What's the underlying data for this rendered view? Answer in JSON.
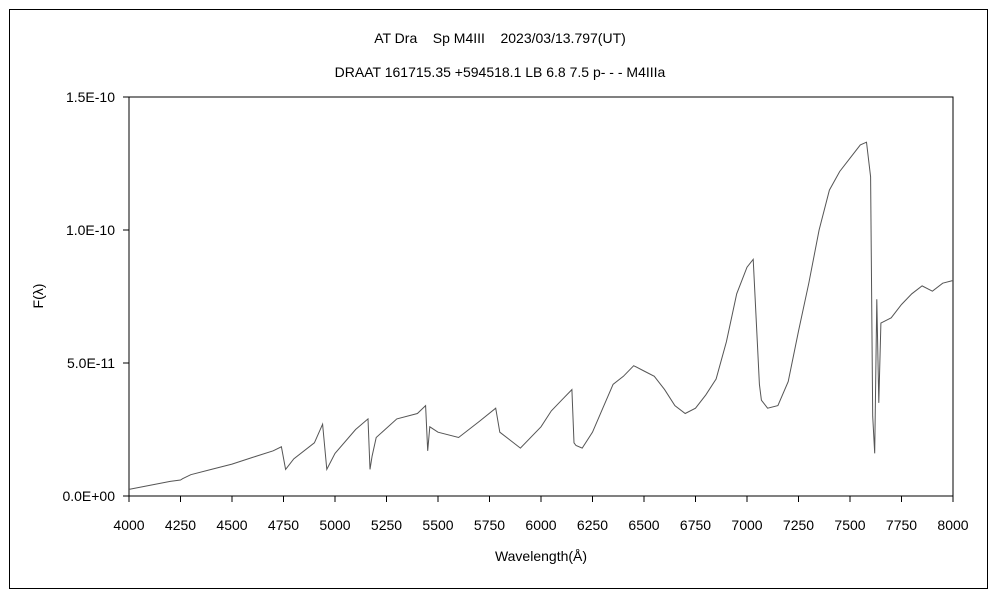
{
  "chart_data": {
    "type": "line",
    "title": "AT Dra    Sp M4III    2023/03/13.797(UT)",
    "subtitle": "DRAAT 161715.35 +594518.1 LB 6.8 7.5 p- - - M4IIIa",
    "xlabel": "Wavelength(Å)",
    "ylabel": "F(λ)",
    "xlim": [
      4000,
      8000
    ],
    "ylim": [
      0,
      1.5e-10
    ],
    "x_ticks": [
      4000,
      4250,
      4500,
      4750,
      5000,
      5250,
      5500,
      5750,
      6000,
      6250,
      6500,
      6750,
      7000,
      7250,
      7500,
      7750,
      8000
    ],
    "x_tick_labels": [
      "4000",
      "4250",
      "4500",
      "4750",
      "5000",
      "5250",
      "5500",
      "5750",
      "6000",
      "6250",
      "6500",
      "6750",
      "7000",
      "7250",
      "7500",
      "7750",
      "8000"
    ],
    "y_ticks": [
      0,
      5e-11,
      1e-10,
      1.5e-10
    ],
    "y_tick_labels": [
      "0.0E+00",
      "5.0E-11",
      "1.0E-10",
      "1.5E-10"
    ],
    "grid": false,
    "line_color": "#555555",
    "series": [
      {
        "x": [
          4000,
          4100,
          4200,
          4250,
          4260,
          4300,
          4400,
          4500,
          4600,
          4700,
          4740,
          4760,
          4800,
          4900,
          4940,
          4960,
          5000,
          5100,
          5160,
          5170,
          5180,
          5200,
          5300,
          5400,
          5440,
          5450,
          5460,
          5500,
          5600,
          5700,
          5780,
          5800,
          5850,
          5900,
          6000,
          6050,
          6100,
          6150,
          6160,
          6170,
          6200,
          6250,
          6300,
          6350,
          6400,
          6450,
          6500,
          6550,
          6600,
          6650,
          6700,
          6750,
          6800,
          6850,
          6900,
          6950,
          7000,
          7030,
          7050,
          7060,
          7070,
          7100,
          7150,
          7200,
          7250,
          7300,
          7350,
          7400,
          7450,
          7500,
          7550,
          7580,
          7600,
          7610,
          7620,
          7630,
          7640,
          7650,
          7700,
          7750,
          7800,
          7850,
          7900,
          7950,
          8000
        ],
        "y": [
          2.5e-12,
          4e-12,
          5.5e-12,
          6e-12,
          6.5e-12,
          8e-12,
          1e-11,
          1.2e-11,
          1.45e-11,
          1.7e-11,
          1.85e-11,
          1e-11,
          1.4e-11,
          2e-11,
          2.7e-11,
          1e-11,
          1.6e-11,
          2.5e-11,
          2.9e-11,
          1e-11,
          1.5e-11,
          2.2e-11,
          2.9e-11,
          3.1e-11,
          3.4e-11,
          1.7e-11,
          2.6e-11,
          2.4e-11,
          2.2e-11,
          2.8e-11,
          3.3e-11,
          2.4e-11,
          2.1e-11,
          1.8e-11,
          2.6e-11,
          3.2e-11,
          3.6e-11,
          4e-11,
          2e-11,
          1.9e-11,
          1.8e-11,
          2.4e-11,
          3.3e-11,
          4.2e-11,
          4.5e-11,
          4.9e-11,
          4.7e-11,
          4.5e-11,
          4e-11,
          3.4e-11,
          3.1e-11,
          3.3e-11,
          3.8e-11,
          4.4e-11,
          5.8e-11,
          7.6e-11,
          8.6e-11,
          8.9e-11,
          5.8e-11,
          4.2e-11,
          3.6e-11,
          3.3e-11,
          3.4e-11,
          4.3e-11,
          6.2e-11,
          8e-11,
          1e-10,
          1.15e-10,
          1.22e-10,
          1.27e-10,
          1.32e-10,
          1.33e-10,
          1.2e-10,
          3e-11,
          1.6e-11,
          7.4e-11,
          3.5e-11,
          6.5e-11,
          6.7e-11,
          7.2e-11,
          7.6e-11,
          7.9e-11,
          7.7e-11,
          8e-11,
          8.1e-11
        ]
      }
    ]
  }
}
